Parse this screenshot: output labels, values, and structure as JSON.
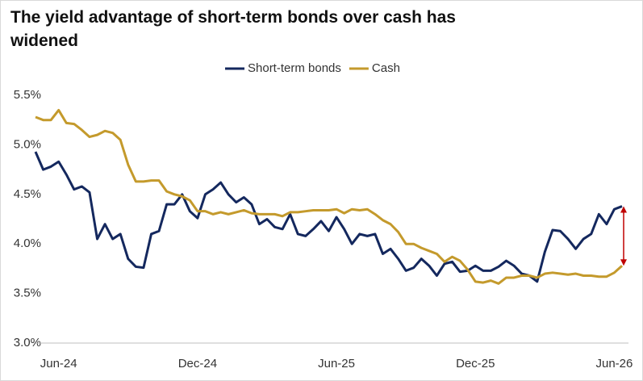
{
  "chart_data": {
    "type": "line",
    "title": "The yield advantage of short-term bonds over cash has widened",
    "categories": [
      null,
      null,
      null,
      "Jun-24",
      null,
      null,
      null,
      null,
      null,
      null,
      null,
      null,
      null,
      null,
      null,
      null,
      null,
      null,
      null,
      null,
      null,
      "Dec-24",
      null,
      null,
      null,
      null,
      null,
      null,
      null,
      null,
      null,
      null,
      null,
      null,
      null,
      null,
      null,
      null,
      null,
      "Jun-25",
      null,
      null,
      null,
      null,
      null,
      null,
      null,
      null,
      null,
      null,
      null,
      null,
      null,
      null,
      null,
      null,
      null,
      "Dec-25",
      null,
      null,
      null,
      null,
      null,
      null,
      null,
      null,
      null,
      null,
      null,
      null,
      null,
      null,
      null,
      null,
      null,
      "Jun-26",
      null
    ],
    "series": [
      {
        "name": "Short-term bonds",
        "color": "#14285e",
        "values": [
          4.93,
          4.75,
          4.78,
          4.83,
          4.7,
          4.55,
          4.58,
          4.52,
          4.05,
          4.2,
          4.05,
          4.1,
          3.85,
          3.77,
          3.76,
          4.1,
          4.13,
          4.4,
          4.4,
          4.5,
          4.33,
          4.26,
          4.5,
          4.55,
          4.62,
          4.5,
          4.42,
          4.47,
          4.4,
          4.2,
          4.25,
          4.17,
          4.15,
          4.3,
          4.1,
          4.08,
          4.15,
          4.23,
          4.13,
          4.27,
          4.15,
          4.0,
          4.1,
          4.08,
          4.1,
          3.9,
          3.95,
          3.85,
          3.73,
          3.76,
          3.85,
          3.78,
          3.68,
          3.8,
          3.82,
          3.72,
          3.73,
          3.78,
          3.73,
          3.73,
          3.77,
          3.83,
          3.78,
          3.7,
          3.68,
          3.62,
          3.92,
          4.14,
          4.13,
          4.05,
          3.95,
          4.05,
          4.1,
          4.3,
          4.2,
          4.35,
          4.38
        ]
      },
      {
        "name": "Cash",
        "color": "#c49a2c",
        "values": [
          5.28,
          5.25,
          5.25,
          5.35,
          5.22,
          5.21,
          5.15,
          5.08,
          5.1,
          5.14,
          5.12,
          5.05,
          4.8,
          4.63,
          4.63,
          4.64,
          4.64,
          4.53,
          4.5,
          4.48,
          4.44,
          4.33,
          4.33,
          4.3,
          4.32,
          4.3,
          4.32,
          4.34,
          4.31,
          4.3,
          4.3,
          4.3,
          4.28,
          4.32,
          4.32,
          4.33,
          4.34,
          4.34,
          4.34,
          4.35,
          4.31,
          4.35,
          4.34,
          4.35,
          4.3,
          4.24,
          4.2,
          4.12,
          4.0,
          4.0,
          3.96,
          3.93,
          3.9,
          3.82,
          3.87,
          3.83,
          3.74,
          3.62,
          3.61,
          3.63,
          3.6,
          3.66,
          3.66,
          3.68,
          3.68,
          3.66,
          3.7,
          3.71,
          3.7,
          3.69,
          3.7,
          3.68,
          3.68,
          3.67,
          3.67,
          3.71,
          3.78
        ]
      }
    ],
    "ylim": [
      3.0,
      5.5
    ],
    "yticks": [
      {
        "value": 3.0,
        "label": "3.0%"
      },
      {
        "value": 3.5,
        "label": "3.5%"
      },
      {
        "value": 4.0,
        "label": "4.0%"
      },
      {
        "value": 4.5,
        "label": "4.5%"
      },
      {
        "value": 5.0,
        "label": "5.0%"
      },
      {
        "value": 5.5,
        "label": "5.5%"
      }
    ],
    "legend": "top",
    "annotation_color": "#c00000"
  }
}
